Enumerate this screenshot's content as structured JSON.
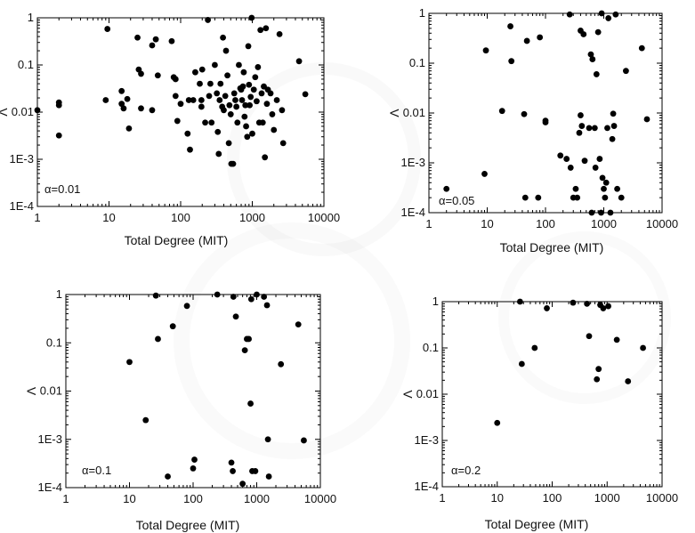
{
  "chart_data": [
    {
      "type": "scatter",
      "annotation": "α=0.01",
      "xlabel": "Total Degree (MIT)",
      "ylabel": "Λ",
      "xscale": "log",
      "yscale": "log",
      "xlim": [
        1,
        10000
      ],
      "ylim": [
        0.0001,
        1
      ],
      "x_ticklabels": [
        "1",
        "10",
        "100",
        "1000",
        "10000"
      ],
      "y_ticklabels": [
        "1E-4",
        "1E-3",
        "0.01",
        "0.1",
        "1"
      ],
      "grid": false,
      "points": [
        [
          1,
          0.011
        ],
        [
          2,
          0.016
        ],
        [
          2,
          0.014
        ],
        [
          2,
          0.0032
        ],
        [
          9.5,
          0.58
        ],
        [
          9,
          0.018
        ],
        [
          15,
          0.028
        ],
        [
          15,
          0.015
        ],
        [
          16,
          0.012
        ],
        [
          18,
          0.019
        ],
        [
          19,
          0.0045
        ],
        [
          25,
          0.38
        ],
        [
          26,
          0.08
        ],
        [
          28,
          0.012
        ],
        [
          28,
          0.065
        ],
        [
          40,
          0.011
        ],
        [
          40,
          0.26
        ],
        [
          45,
          0.35
        ],
        [
          48,
          0.06
        ],
        [
          75,
          0.32
        ],
        [
          80,
          0.055
        ],
        [
          85,
          0.022
        ],
        [
          85,
          0.05
        ],
        [
          90,
          0.0065
        ],
        [
          100,
          0.015
        ],
        [
          125,
          0.0035
        ],
        [
          130,
          0.018
        ],
        [
          135,
          0.0016
        ],
        [
          150,
          0.018
        ],
        [
          160,
          0.07
        ],
        [
          185,
          0.04
        ],
        [
          195,
          0.013
        ],
        [
          195,
          0.018
        ],
        [
          200,
          0.08
        ],
        [
          220,
          0.006
        ],
        [
          240,
          0.9
        ],
        [
          250,
          0.022
        ],
        [
          260,
          0.04
        ],
        [
          270,
          0.006
        ],
        [
          300,
          0.1
        ],
        [
          320,
          0.025
        ],
        [
          330,
          0.0038
        ],
        [
          340,
          0.0013
        ],
        [
          350,
          0.018
        ],
        [
          360,
          0.04
        ],
        [
          380,
          0.013
        ],
        [
          390,
          0.38
        ],
        [
          400,
          0.011
        ],
        [
          420,
          0.022
        ],
        [
          430,
          0.2
        ],
        [
          450,
          0.06
        ],
        [
          470,
          0.0022
        ],
        [
          480,
          0.014
        ],
        [
          500,
          0.009
        ],
        [
          510,
          0.0008
        ],
        [
          540,
          0.0008
        ],
        [
          560,
          0.025
        ],
        [
          580,
          0.018
        ],
        [
          600,
          0.013
        ],
        [
          620,
          0.006
        ],
        [
          650,
          0.1
        ],
        [
          680,
          0.032
        ],
        [
          700,
          0.03
        ],
        [
          720,
          0.018
        ],
        [
          740,
          0.035
        ],
        [
          760,
          0.07
        ],
        [
          780,
          0.008
        ],
        [
          800,
          0.014
        ],
        [
          820,
          0.005
        ],
        [
          850,
          0.003
        ],
        [
          880,
          0.25
        ],
        [
          900,
          0.038
        ],
        [
          920,
          0.014
        ],
        [
          950,
          0.021
        ],
        [
          980,
          1.05
        ],
        [
          1000,
          0.0035
        ],
        [
          1050,
          0.03
        ],
        [
          1100,
          0.055
        ],
        [
          1150,
          0.017
        ],
        [
          1200,
          0.09
        ],
        [
          1250,
          0.006
        ],
        [
          1300,
          0.55
        ],
        [
          1350,
          0.025
        ],
        [
          1400,
          0.006
        ],
        [
          1450,
          0.035
        ],
        [
          1500,
          0.0011
        ],
        [
          1550,
          0.6
        ],
        [
          1600,
          0.015
        ],
        [
          1650,
          0.03
        ],
        [
          1800,
          0.025
        ],
        [
          1900,
          0.009
        ],
        [
          2000,
          0.0042
        ],
        [
          2200,
          0.018
        ],
        [
          2400,
          0.45
        ],
        [
          2600,
          0.011
        ],
        [
          2700,
          0.0022
        ],
        [
          4500,
          0.12
        ],
        [
          5500,
          0.024
        ]
      ]
    },
    {
      "type": "scatter",
      "annotation": "α=0.05",
      "xlabel": "Total Degree (MIT)",
      "ylabel": "Λ",
      "xscale": "log",
      "yscale": "log",
      "xlim": [
        1,
        10000
      ],
      "ylim": [
        0.0001,
        1
      ],
      "x_ticklabels": [
        "1",
        "10",
        "100",
        "1000",
        "10000"
      ],
      "y_ticklabels": [
        "1E-4",
        "1E-3",
        "0.01",
        "0.1",
        "1"
      ],
      "grid": false,
      "points": [
        [
          2,
          0.0003
        ],
        [
          9,
          0.0006
        ],
        [
          9.5,
          0.18
        ],
        [
          18,
          0.011
        ],
        [
          25,
          0.55
        ],
        [
          26,
          0.11
        ],
        [
          43,
          0.0095
        ],
        [
          45,
          0.0002
        ],
        [
          48,
          0.28
        ],
        [
          75,
          0.0002
        ],
        [
          80,
          0.33
        ],
        [
          100,
          0.007
        ],
        [
          100,
          0.0065
        ],
        [
          180,
          0.0014
        ],
        [
          230,
          0.0012
        ],
        [
          260,
          0.95
        ],
        [
          270,
          0.0008
        ],
        [
          300,
          0.0002
        ],
        [
          330,
          0.0003
        ],
        [
          350,
          0.0002
        ],
        [
          380,
          0.004
        ],
        [
          400,
          0.45
        ],
        [
          400,
          0.009
        ],
        [
          420,
          0.0055
        ],
        [
          450,
          0.38
        ],
        [
          470,
          0.0011
        ],
        [
          560,
          0.005
        ],
        [
          600,
          0.15
        ],
        [
          620,
          0.0001
        ],
        [
          640,
          0.12
        ],
        [
          700,
          0.005
        ],
        [
          720,
          0.0008
        ],
        [
          750,
          0.06
        ],
        [
          800,
          0.42
        ],
        [
          850,
          0.0012
        ],
        [
          900,
          0.0001
        ],
        [
          920,
          1.05
        ],
        [
          950,
          0.0005
        ],
        [
          1000,
          0.0003
        ],
        [
          1050,
          0.0002
        ],
        [
          1100,
          0.0004
        ],
        [
          1150,
          0.005
        ],
        [
          1200,
          0.8
        ],
        [
          1300,
          0.0001
        ],
        [
          1400,
          0.003
        ],
        [
          1450,
          0.0097
        ],
        [
          1500,
          0.0055
        ],
        [
          1600,
          0.95
        ],
        [
          1700,
          0.0003
        ],
        [
          2000,
          0.0002
        ],
        [
          2400,
          0.07
        ],
        [
          4500,
          0.2
        ],
        [
          5500,
          0.0075
        ]
      ]
    },
    {
      "type": "scatter",
      "annotation": "α=0.1",
      "xlabel": "Total Degree (MIT)",
      "ylabel": "Λ",
      "xscale": "log",
      "yscale": "log",
      "xlim": [
        1,
        10000
      ],
      "ylim": [
        0.0001,
        1
      ],
      "x_ticklabels": [
        "1",
        "10",
        "100",
        "1000",
        "10000"
      ],
      "y_ticklabels": [
        "1E-4",
        "1E-3",
        "0.01",
        "0.1",
        "1"
      ],
      "grid": false,
      "points": [
        [
          10,
          0.04
        ],
        [
          18,
          0.0025
        ],
        [
          26,
          0.95
        ],
        [
          28,
          0.12
        ],
        [
          40,
          0.00017
        ],
        [
          48,
          0.22
        ],
        [
          80,
          0.58
        ],
        [
          100,
          0.00025
        ],
        [
          105,
          0.00038
        ],
        [
          240,
          1.2
        ],
        [
          400,
          0.00033
        ],
        [
          420,
          0.00022
        ],
        [
          430,
          0.9
        ],
        [
          470,
          0.35
        ],
        [
          600,
          0.00012
        ],
        [
          650,
          0.07
        ],
        [
          700,
          0.12
        ],
        [
          750,
          0.12
        ],
        [
          800,
          0.0055
        ],
        [
          820,
          0.8
        ],
        [
          850,
          0.00022
        ],
        [
          950,
          0.00022
        ],
        [
          1000,
          1.1
        ],
        [
          1300,
          0.9
        ],
        [
          1450,
          0.6
        ],
        [
          1500,
          0.001
        ],
        [
          1550,
          0.00017
        ],
        [
          2400,
          0.036
        ],
        [
          4500,
          0.24
        ],
        [
          5500,
          0.00095
        ]
      ]
    },
    {
      "type": "scatter",
      "annotation": "α=0.2",
      "xlabel": "Total Degree (MIT)",
      "ylabel": "Λ",
      "xscale": "log",
      "yscale": "log",
      "xlim": [
        1,
        10000
      ],
      "ylim": [
        0.0001,
        1
      ],
      "x_ticklabels": [
        "1",
        "10",
        "100",
        "1000",
        "10000"
      ],
      "y_ticklabels": [
        "1E-4",
        "1E-3",
        "0.01",
        "0.1",
        "1"
      ],
      "grid": false,
      "points": [
        [
          10,
          0.0024
        ],
        [
          26,
          1.1
        ],
        [
          28,
          0.045
        ],
        [
          48,
          0.1
        ],
        [
          80,
          0.72
        ],
        [
          240,
          0.95
        ],
        [
          430,
          0.9
        ],
        [
          470,
          0.18
        ],
        [
          650,
          0.021
        ],
        [
          700,
          0.035
        ],
        [
          750,
          0.85
        ],
        [
          850,
          0.72
        ],
        [
          1050,
          0.8
        ],
        [
          1500,
          0.15
        ],
        [
          2400,
          0.019
        ],
        [
          4500,
          0.1
        ]
      ]
    }
  ]
}
